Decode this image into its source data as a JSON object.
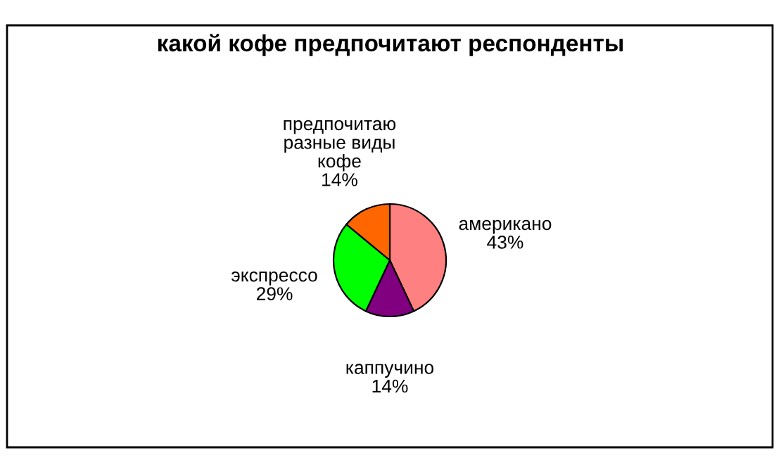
{
  "chart_data": {
    "type": "pie",
    "title": "какой кофе предпочитают респонденты",
    "categories": [
      "американо",
      "каппучино",
      "экспрессо",
      "предпочитаю\nразные виды\nкофе"
    ],
    "values": [
      43,
      14,
      29,
      14
    ],
    "value_labels": [
      "43%",
      "14%",
      "29%",
      "14%"
    ],
    "colors": [
      "#ff8080",
      "#800080",
      "#00ff00",
      "#ff6600"
    ],
    "legend": false
  }
}
